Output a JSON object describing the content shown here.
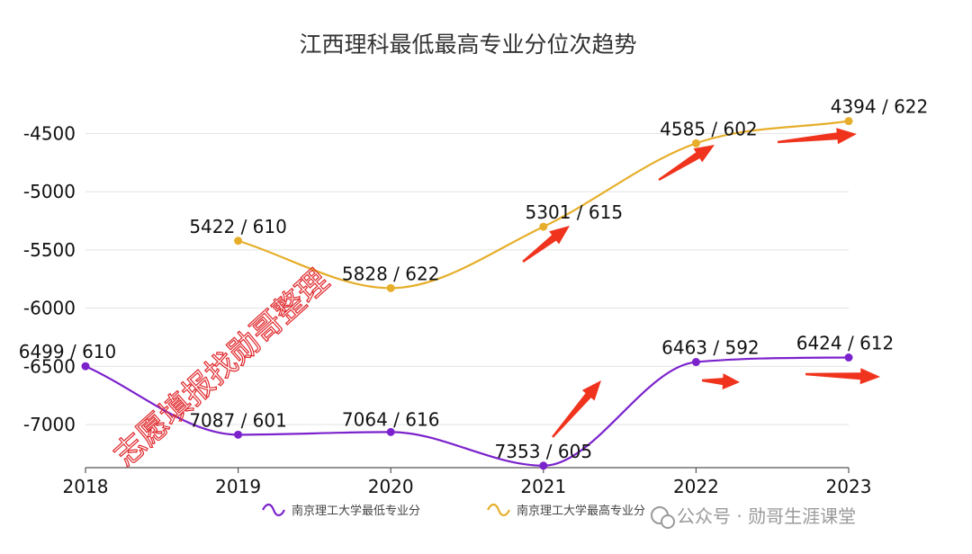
{
  "chart_data": {
    "type": "line",
    "title": "江西理科最低最高专业分位次趋势",
    "xlabel": "",
    "ylabel": "",
    "categories": [
      "2018",
      "2019",
      "2020",
      "2021",
      "2022",
      "2023"
    ],
    "y_ticks": [
      "-4500",
      "-5000",
      "-5500",
      "-6000",
      "-6500",
      "-7000"
    ],
    "ylim": [
      -7370,
      -4230
    ],
    "grid": true,
    "legend_position": "bottom",
    "series": [
      {
        "name": "南京理工大学最低专业分",
        "color": "#7b22cc",
        "values": [
          -6499,
          -7087,
          -7064,
          -7353,
          -6463,
          -6424
        ],
        "labels": [
          "6499 / 610",
          "7087 / 601",
          "7064 / 616",
          "7353 / 605",
          "6463 / 592",
          "6424 / 612"
        ]
      },
      {
        "name": "南京理工大学最高专业分",
        "color": "#e6ae2a",
        "values": [
          null,
          -5422,
          -5828,
          -5301,
          -4585,
          -4394
        ],
        "labels": [
          null,
          "5422 / 610",
          "5828 / 622",
          "5301 / 615",
          "4585 / 602",
          "4394 / 622"
        ]
      }
    ]
  },
  "watermark": "志愿填报找勋哥整理",
  "footer": "公众号 · 勋哥生涯课堂",
  "colors": {
    "arrow": "#f0331d",
    "grid": "#e3e3e3",
    "axis": "#555555"
  }
}
